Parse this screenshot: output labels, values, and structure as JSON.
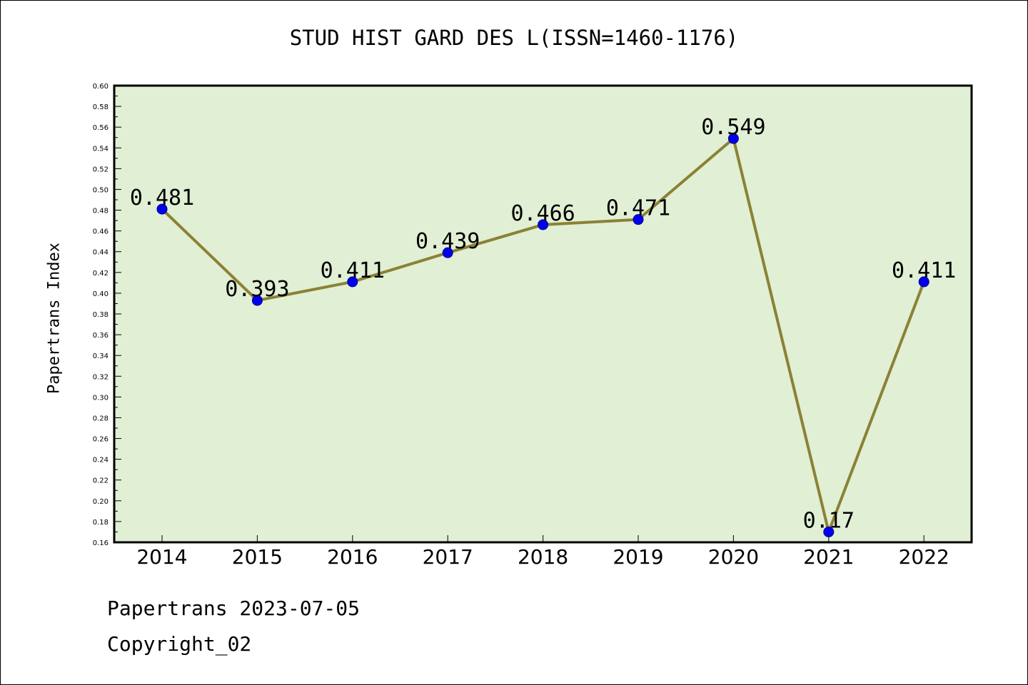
{
  "chart": {
    "title": "STUD HIST GARD DES L(ISSN=1460-1176)",
    "ylabel": "Papertrans Index",
    "footer_date": "Papertrans 2023-07-05",
    "footer_copyright": "Copyright_02"
  },
  "colors": {
    "plot_background": "#e1efd4",
    "line": "#8b8136",
    "marker": "#0000ee",
    "axis": "#000000"
  },
  "chart_data": {
    "type": "line",
    "title": "STUD HIST GARD DES L(ISSN=1460-1176)",
    "xlabel": "",
    "ylabel": "Papertrans Index",
    "categories": [
      "2014",
      "2015",
      "2016",
      "2017",
      "2018",
      "2019",
      "2020",
      "2021",
      "2022"
    ],
    "series": [
      {
        "values": [
          0.481,
          0.393,
          0.411,
          0.439,
          0.466,
          0.471,
          0.549,
          0.17,
          0.411
        ],
        "labels": [
          "0.481",
          "0.393",
          "0.411",
          "0.439",
          "0.466",
          "0.471",
          "0.549",
          "0.17",
          "0.411"
        ]
      }
    ],
    "ylim": [
      0.16,
      0.6
    ],
    "yticks": [
      "0.16",
      "0.18",
      "0.20",
      "0.22",
      "0.24",
      "0.26",
      "0.28",
      "0.30",
      "0.32",
      "0.34",
      "0.36",
      "0.38",
      "0.40",
      "0.42",
      "0.44",
      "0.46",
      "0.48",
      "0.50",
      "0.52",
      "0.54",
      "0.56",
      "0.58",
      "0.60"
    ],
    "grid": false,
    "legend": "none"
  }
}
